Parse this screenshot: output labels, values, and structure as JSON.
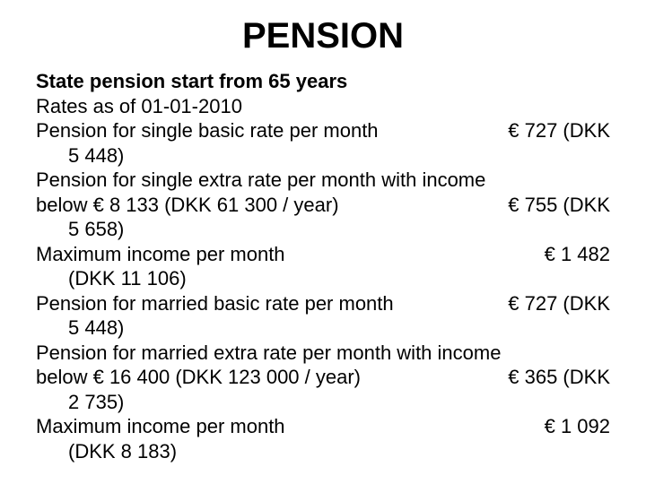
{
  "title": "PENSION",
  "subtitle": "State pension start from 65 years",
  "rates_line": "Rates as of 01-01-2010",
  "row1_left": "Pension for single basic rate per month",
  "row1_right": "€ 727 (DKK",
  "row1_cont": "5 448)",
  "row2_line1": "Pension for single extra rate per month with income",
  "row2_left": "below € 8 133 (DKK 61 300 / year)",
  "row2_right": "€ 755 (DKK",
  "row2_cont": "5 658)",
  "row3_left": "Maximum income per month",
  "row3_right": "€ 1 482",
  "row3_cont": "(DKK 11 106)",
  "row4_left": "Pension for married basic rate per month",
  "row4_right": "€ 727 (DKK",
  "row4_cont": "5 448)",
  "row5_line1": "Pension for married extra rate per month with income",
  "row5_left": "below € 16 400 (DKK 123 000 / year)",
  "row5_right": "€ 365 (DKK",
  "row5_cont": "2 735)",
  "row6_left": "Maximum income per month",
  "row6_right": "€ 1 092",
  "row6_cont": "(DKK 8 183)"
}
